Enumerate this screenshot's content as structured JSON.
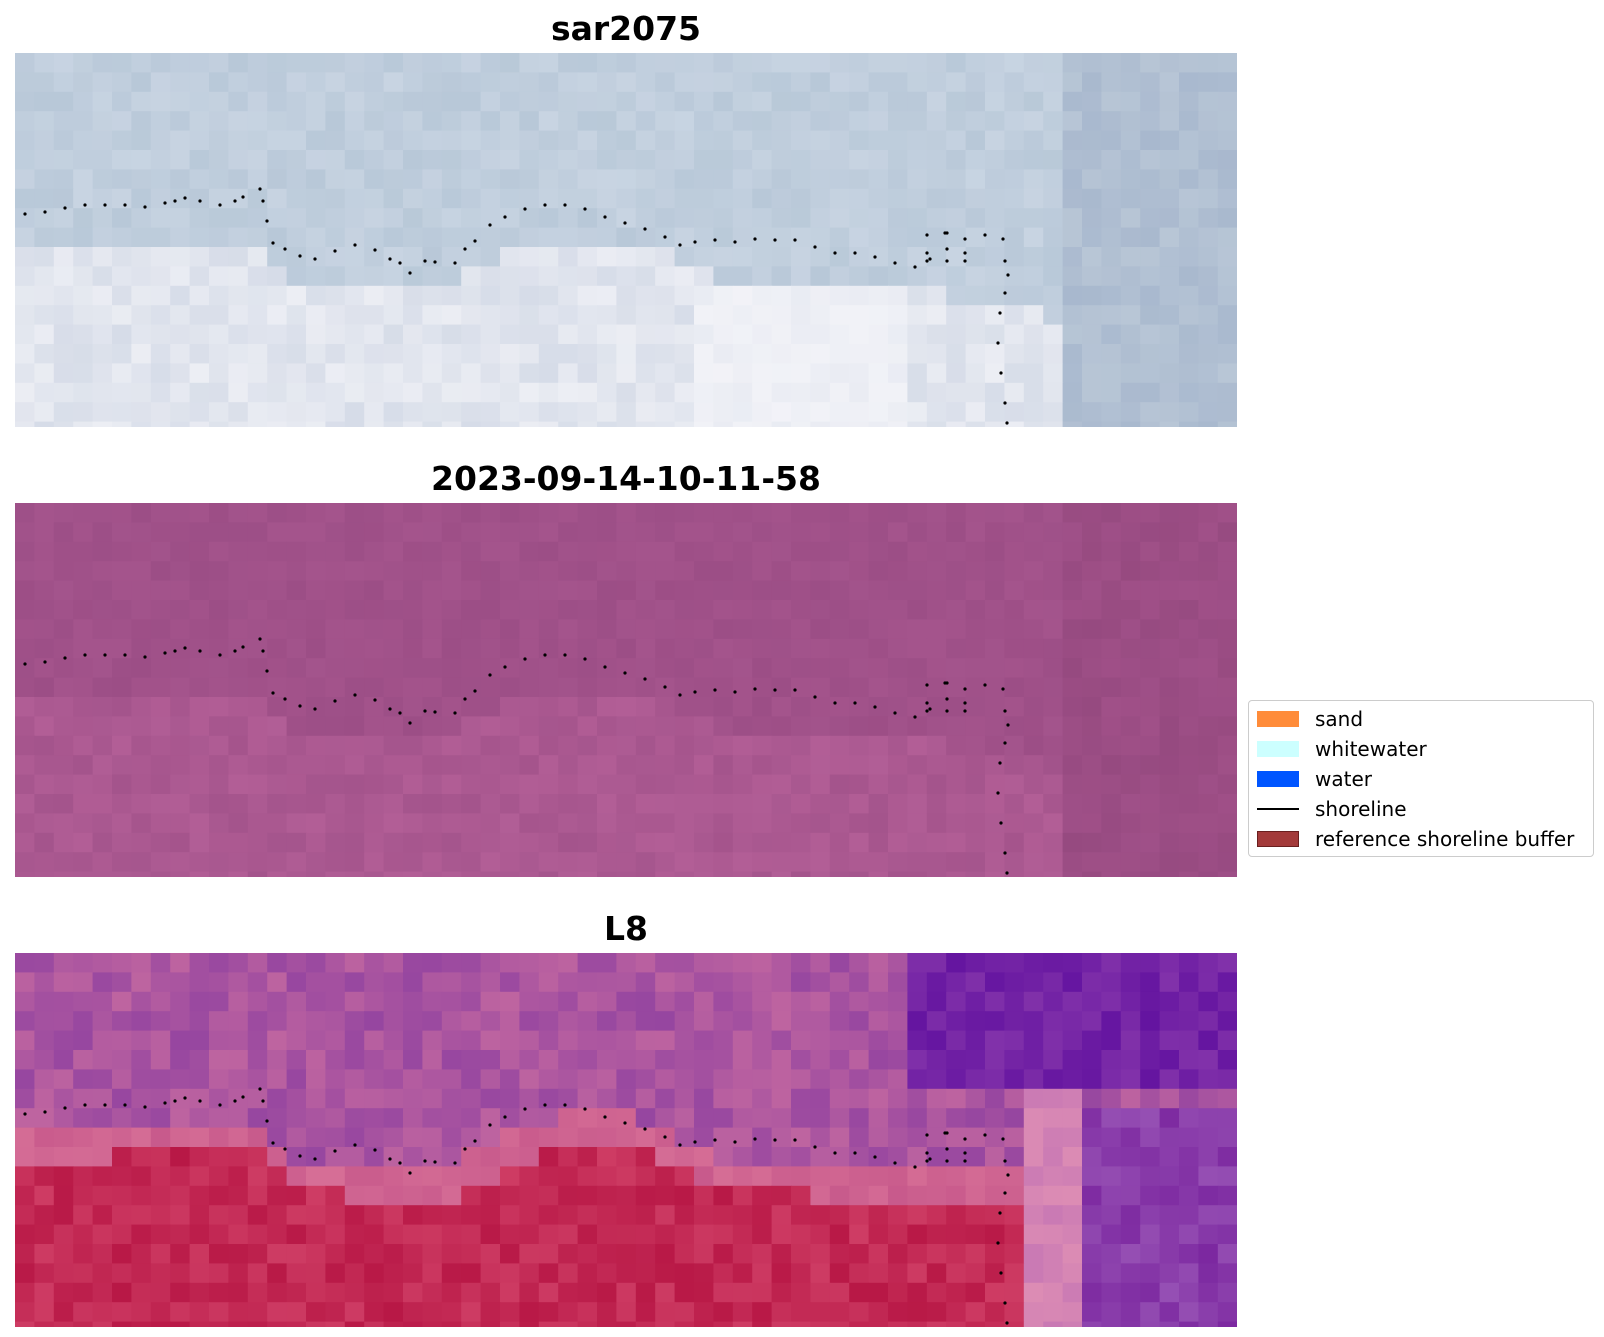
{
  "panels": [
    {
      "title": "sar2075",
      "palette": "sar"
    },
    {
      "title": "2023-09-14-10-11-58",
      "palette": "magenta"
    },
    {
      "title": "L8",
      "palette": "l8"
    }
  ],
  "legend": {
    "items": [
      {
        "label": "sand",
        "color": "#ff8c3a",
        "kind": "patch"
      },
      {
        "label": "whitewater",
        "color": "#ccffff",
        "kind": "patch"
      },
      {
        "label": "water",
        "color": "#0055ff",
        "kind": "patch"
      },
      {
        "label": "shoreline",
        "color": "#000000",
        "kind": "line"
      },
      {
        "label": "reference shoreline buffer",
        "color": "#a33a3a",
        "kind": "patch"
      }
    ]
  }
}
